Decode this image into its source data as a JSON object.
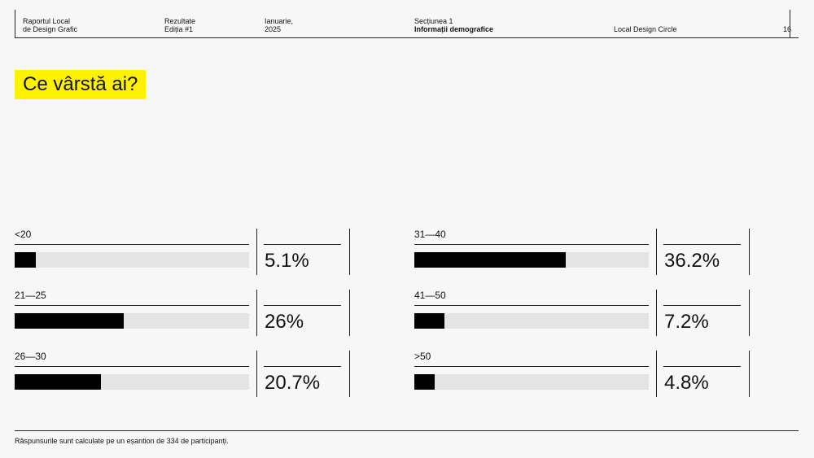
{
  "header": {
    "report": "Raportul Local\nde Design Grafic",
    "results": "Rezultate\nEdiția #1",
    "date": "Ianuarie,\n2025",
    "section": "Secțiunea 1",
    "section_title": "Informații demografice",
    "org": "Local Design Circle",
    "page": "16"
  },
  "question": "Ce vârstă ai?",
  "chart_data": {
    "type": "bar",
    "orientation": "horizontal",
    "title": "Ce vârstă ai?",
    "categories": [
      "<20",
      "21—25",
      "26—30",
      "31—40",
      "41—50",
      ">50"
    ],
    "values": [
      5.1,
      26,
      20.7,
      36.2,
      7.2,
      4.8
    ],
    "value_labels": [
      "5.1%",
      "26%",
      "20.7%",
      "36.2%",
      "7.2%",
      "4.8%"
    ],
    "xlabel": "",
    "ylabel": "",
    "unit": "%",
    "grid": false,
    "legend": "none"
  },
  "footnote": "Răspunsurile sunt calculate pe un eșantion de 334 de participanți.",
  "colors": {
    "accent": "#fff200",
    "bar": "#000000",
    "track": "#e4e4e4",
    "background": "#f7f7f7"
  }
}
